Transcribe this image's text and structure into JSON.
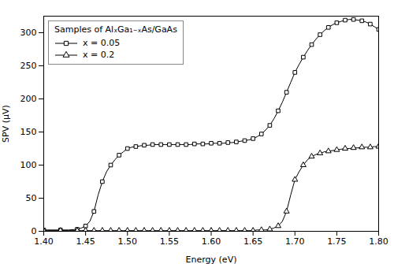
{
  "chart_data": {
    "type": "line",
    "title": "Samples of AlₓGa₁₋ₓAs/GaAs",
    "xlabel": "Energy (eV)",
    "ylabel": "SPV (μV)",
    "xlim": [
      1.4,
      1.8
    ],
    "ylim": [
      0,
      325
    ],
    "xticks": [
      {
        "value": 1.4,
        "label": "1.40"
      },
      1.45,
      {
        "value": 1.5,
        "label": "1.50"
      },
      1.55,
      {
        "value": 1.6,
        "label": "1.60"
      },
      1.65,
      {
        "value": 1.7,
        "label": "1.70"
      },
      1.75,
      {
        "value": 1.8,
        "label": "1.80"
      }
    ],
    "yticks": [
      0,
      50,
      100,
      150,
      200,
      250,
      300
    ],
    "legend": "upper left",
    "x": [
      1.4,
      1.41,
      1.42,
      1.43,
      1.44,
      1.445,
      1.45,
      1.455,
      1.46,
      1.465,
      1.47,
      1.475,
      1.48,
      1.485,
      1.49,
      1.495,
      1.5,
      1.505,
      1.51,
      1.515,
      1.52,
      1.525,
      1.53,
      1.535,
      1.54,
      1.545,
      1.55,
      1.555,
      1.56,
      1.565,
      1.57,
      1.575,
      1.58,
      1.585,
      1.59,
      1.595,
      1.6,
      1.605,
      1.61,
      1.615,
      1.62,
      1.625,
      1.63,
      1.635,
      1.64,
      1.645,
      1.65,
      1.655,
      1.66,
      1.665,
      1.67,
      1.675,
      1.68,
      1.685,
      1.69,
      1.695,
      1.7,
      1.705,
      1.71,
      1.715,
      1.72,
      1.725,
      1.73,
      1.735,
      1.74,
      1.745,
      1.75,
      1.755,
      1.76,
      1.765,
      1.77,
      1.775,
      1.78,
      1.785,
      1.79,
      1.795,
      1.8
    ],
    "series": [
      {
        "name": "x = 0.05",
        "color": "#000000",
        "marker": "square",
        "values": [
          2,
          2,
          2,
          2,
          3,
          5,
          8,
          15,
          30,
          55,
          75,
          90,
          100,
          108,
          115,
          120,
          125,
          127,
          128,
          129,
          130,
          130,
          131,
          131,
          131,
          131,
          131,
          131,
          131,
          131,
          131,
          131,
          132,
          132,
          132,
          132,
          133,
          133,
          133,
          133,
          134,
          134,
          135,
          136,
          137,
          138,
          140,
          143,
          147,
          153,
          160,
          170,
          182,
          195,
          210,
          225,
          240,
          252,
          263,
          273,
          282,
          290,
          297,
          303,
          308,
          312,
          315,
          317,
          319,
          320,
          320,
          319,
          318,
          316,
          313,
          309,
          305
        ]
      },
      {
        "name": "x = 0.2",
        "color": "#000000",
        "marker": "triangle",
        "values": [
          1,
          1,
          1,
          1,
          1,
          1,
          1,
          1,
          1,
          1,
          1,
          1,
          1,
          1,
          1,
          1,
          1,
          1,
          1,
          1,
          1,
          1,
          1,
          1,
          1,
          1,
          1,
          1,
          1,
          1,
          1,
          1,
          1,
          1,
          1,
          1,
          1,
          1,
          1,
          1,
          1,
          1,
          1,
          1,
          1,
          1,
          1,
          2,
          2,
          2,
          3,
          5,
          8,
          15,
          30,
          55,
          78,
          90,
          100,
          108,
          113,
          116,
          118,
          120,
          121,
          122,
          123,
          124,
          125,
          125,
          126,
          126,
          127,
          127,
          127,
          128,
          128
        ]
      }
    ]
  }
}
